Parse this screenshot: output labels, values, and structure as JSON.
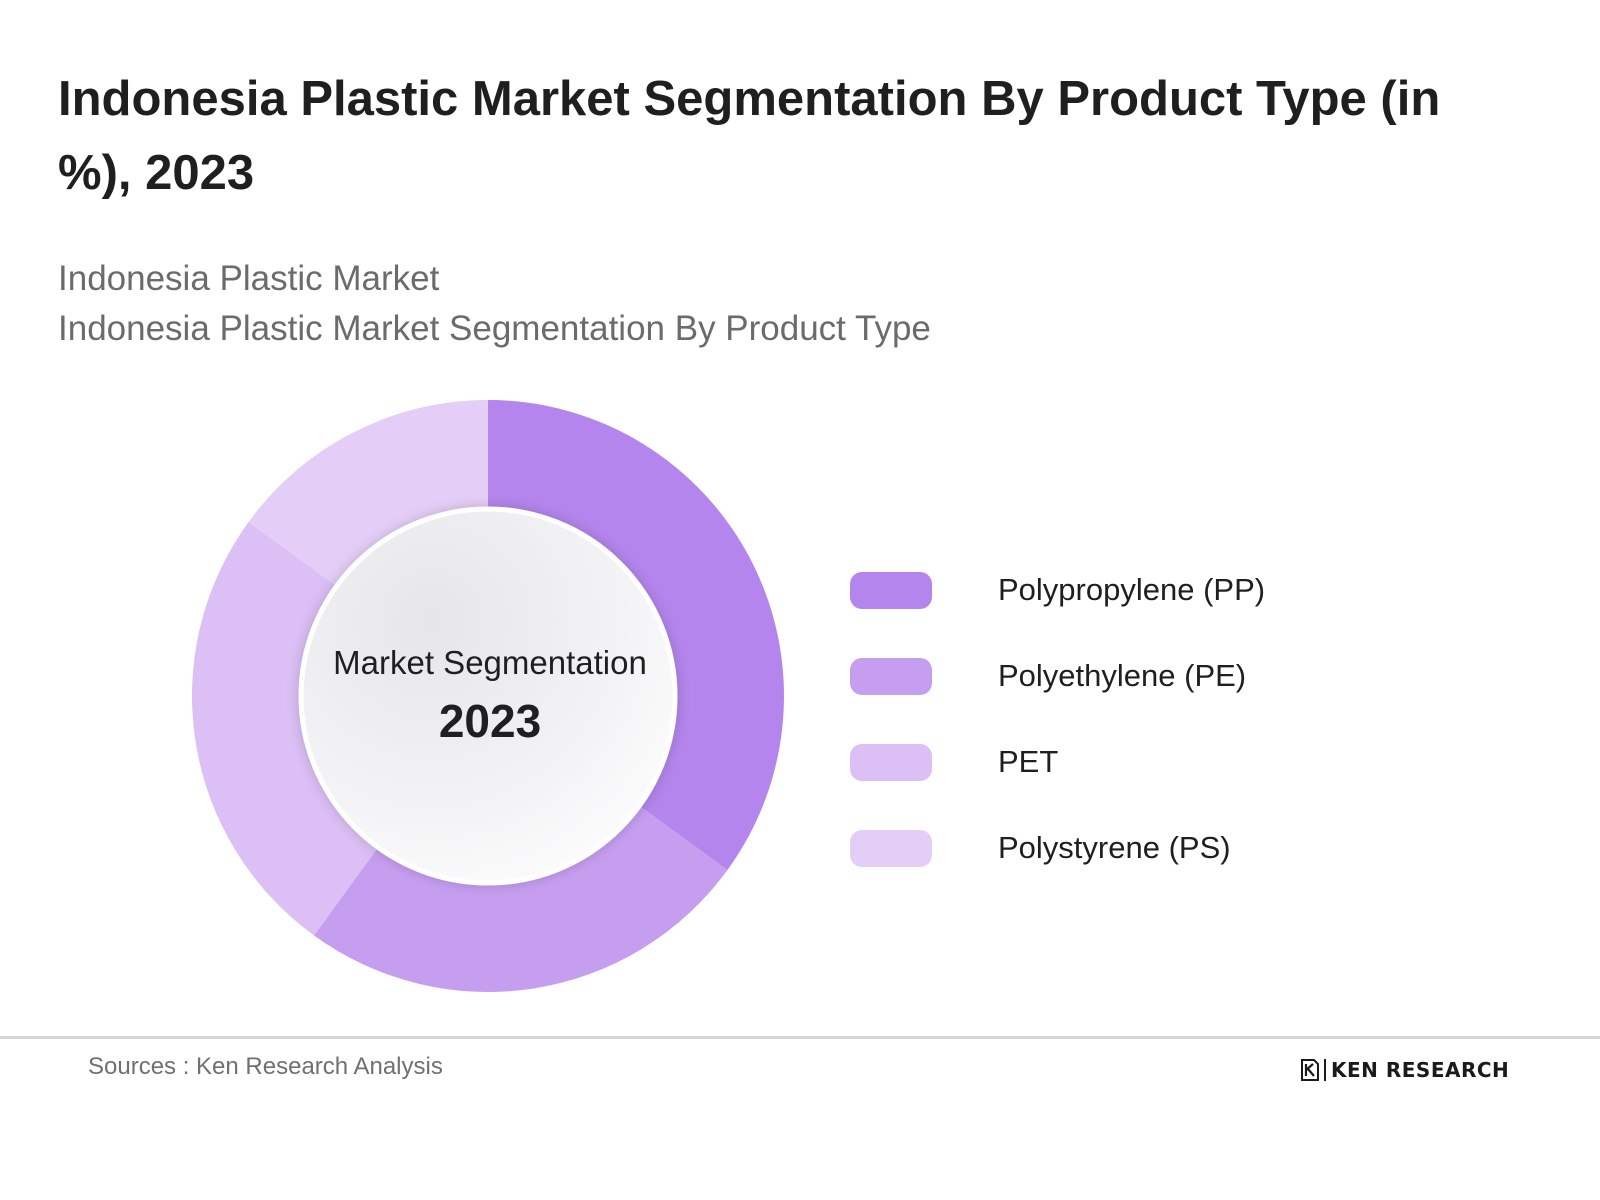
{
  "title": "Indonesia Plastic Market Segmentation By Product Type (in %), 2023",
  "subtitle": {
    "line1": "Indonesia Plastic Market",
    "line2": "Indonesia Plastic Market Segmentation By Product Type"
  },
  "center": {
    "label": "Market Segmentation",
    "year": "2023"
  },
  "chart_data": {
    "type": "pie",
    "variant": "donut",
    "categories": [
      "Polypropylene (PP)",
      "Polyethylene (PE)",
      "PET",
      "Polystyrene (PS)"
    ],
    "values": [
      35,
      25,
      25,
      15
    ],
    "unit": "%",
    "colors": [
      "#b485ec",
      "#c69ef0",
      "#dbbff5",
      "#e4cef7"
    ],
    "start_angle": "12 o'clock",
    "direction": "clockwise",
    "legend_position": "right"
  },
  "footer": {
    "source": "Sources : Ken Research Analysis",
    "logo_text": "KEN RESEARCH"
  }
}
